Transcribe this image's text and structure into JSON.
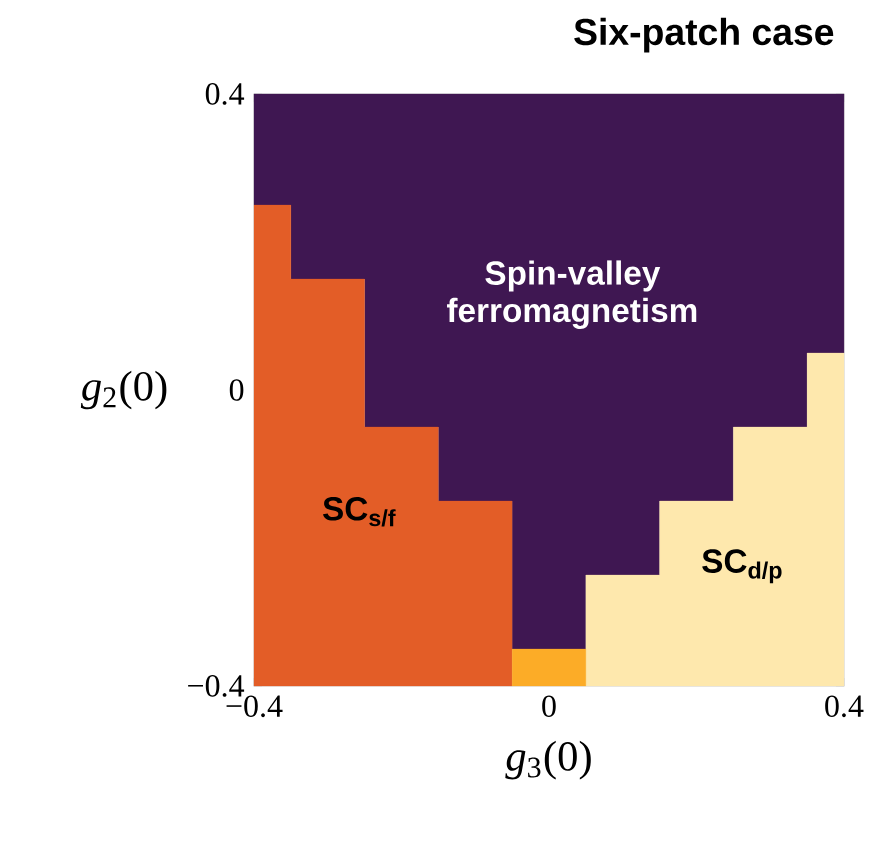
{
  "chart_data": {
    "type": "area",
    "title": "Six-patch case",
    "xlabel": "*g*$_{3}$(0)",
    "ylabel": "*g*$_{2}$(0)",
    "xlim": [
      -0.4,
      0.4
    ],
    "ylim": [
      -0.4,
      0.4
    ],
    "xticks": [
      {
        "value": -0.4,
        "label": "−0.4"
      },
      0,
      0.4
    ],
    "yticks": [
      {
        "value": -0.4,
        "label": "−0.4"
      },
      0,
      0.4
    ],
    "series": [
      {
        "name": "Spin-valley ferromagnetism",
        "color": "#3f1752",
        "x": [
          -0.4,
          -0.4,
          0.4,
          0.4,
          0.35,
          0.35,
          0.25,
          0.25,
          0.15,
          0.15,
          0.05,
          0.05,
          -0.05,
          -0.05,
          -0.15,
          -0.15,
          -0.25,
          -0.25,
          -0.35,
          -0.35
        ],
        "values": [
          0.25,
          0.4,
          0.4,
          0.05,
          0.05,
          -0.05,
          -0.05,
          -0.15,
          -0.15,
          -0.25,
          -0.25,
          -0.35,
          -0.35,
          -0.15,
          -0.15,
          -0.05,
          -0.05,
          0.15,
          0.15,
          0.25
        ]
      },
      {
        "name": "**SC**$_{s/f}$",
        "color": "#e35d27",
        "x": [
          -0.4,
          -0.4,
          -0.35,
          -0.35,
          -0.25,
          -0.25,
          -0.15,
          -0.15,
          -0.05,
          -0.05
        ],
        "values": [
          -0.4,
          0.25,
          0.25,
          0.15,
          0.15,
          -0.05,
          -0.05,
          -0.15,
          -0.15,
          -0.4
        ]
      },
      {
        "name": "**SC**$_{d/p}$",
        "color": "#fee8ad",
        "x": [
          0.05,
          0.05,
          0.15,
          0.15,
          0.25,
          0.25,
          0.35,
          0.35,
          0.4,
          0.4
        ],
        "values": [
          -0.4,
          -0.25,
          -0.25,
          -0.15,
          -0.15,
          -0.05,
          -0.05,
          0.05,
          0.05,
          -0.4
        ]
      },
      {
        "color": "#fcac27",
        "x": [
          -0.05,
          -0.05,
          0.05,
          0.05
        ],
        "values": [
          -0.4,
          -0.35,
          -0.35,
          -0.4
        ]
      }
    ]
  }
}
